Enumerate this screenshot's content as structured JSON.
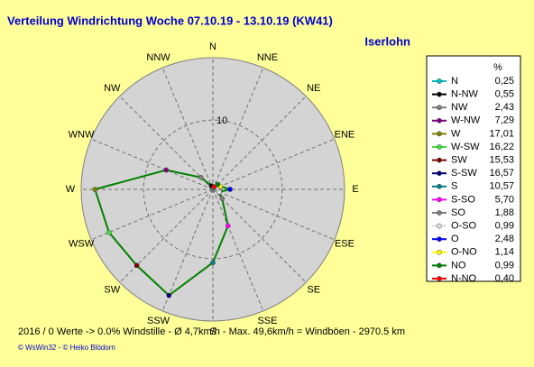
{
  "chart_data": {
    "type": "radar",
    "title": "Verteilung Windrichtung   Woche 07.10.19 - 13.10.19 (KW41)",
    "location": "Iserlohn",
    "categories": [
      "N",
      "NNE",
      "NE",
      "ENE",
      "E",
      "ESE",
      "SE",
      "SSE",
      "S",
      "SSW",
      "SW",
      "WSW",
      "W",
      "WNW",
      "NW",
      "NNW"
    ],
    "rlim": [
      0,
      19
    ],
    "rticks": [
      10
    ],
    "legend_header": "%",
    "series": {
      "name": "Windrichtung",
      "line_color": "#008000",
      "names": [
        "N",
        "N-NW",
        "NW",
        "W-NW",
        "W",
        "W-SW",
        "SW",
        "S-SW",
        "S",
        "S-SO",
        "SO",
        "O-SO",
        "O",
        "O-NO",
        "NO",
        "N-NO"
      ],
      "colors": [
        "#00c0c0",
        "#000000",
        "#808080",
        "#800080",
        "#808000",
        "#40e040",
        "#800000",
        "#000080",
        "#008080",
        "#ff00ff",
        "#808080",
        "#e0e0e0",
        "#0000ff",
        "#ffff00",
        "#008000",
        "#ff0000"
      ],
      "values": [
        0.25,
        0.55,
        2.43,
        7.29,
        17.01,
        16.22,
        15.53,
        16.57,
        10.57,
        5.7,
        1.88,
        0.99,
        2.48,
        1.14,
        0.99,
        0.4
      ],
      "value_labels": [
        "0,25",
        "0,55",
        "2,43",
        "7,29",
        "17,01",
        "16,22",
        "15,53",
        "16,57",
        "10,57",
        "5,70",
        "1,88",
        "0,99",
        "2,48",
        "1,14",
        "0,99",
        "0,40"
      ]
    },
    "footer": "2016 / 0 Werte  -> 0.0% Windstille  -  Ø 4,7km/h  -  Max. 49,6km/h = Windböen  -  2970.5 km",
    "credit": "© WsWin32  - © Heiko Blödorn"
  }
}
